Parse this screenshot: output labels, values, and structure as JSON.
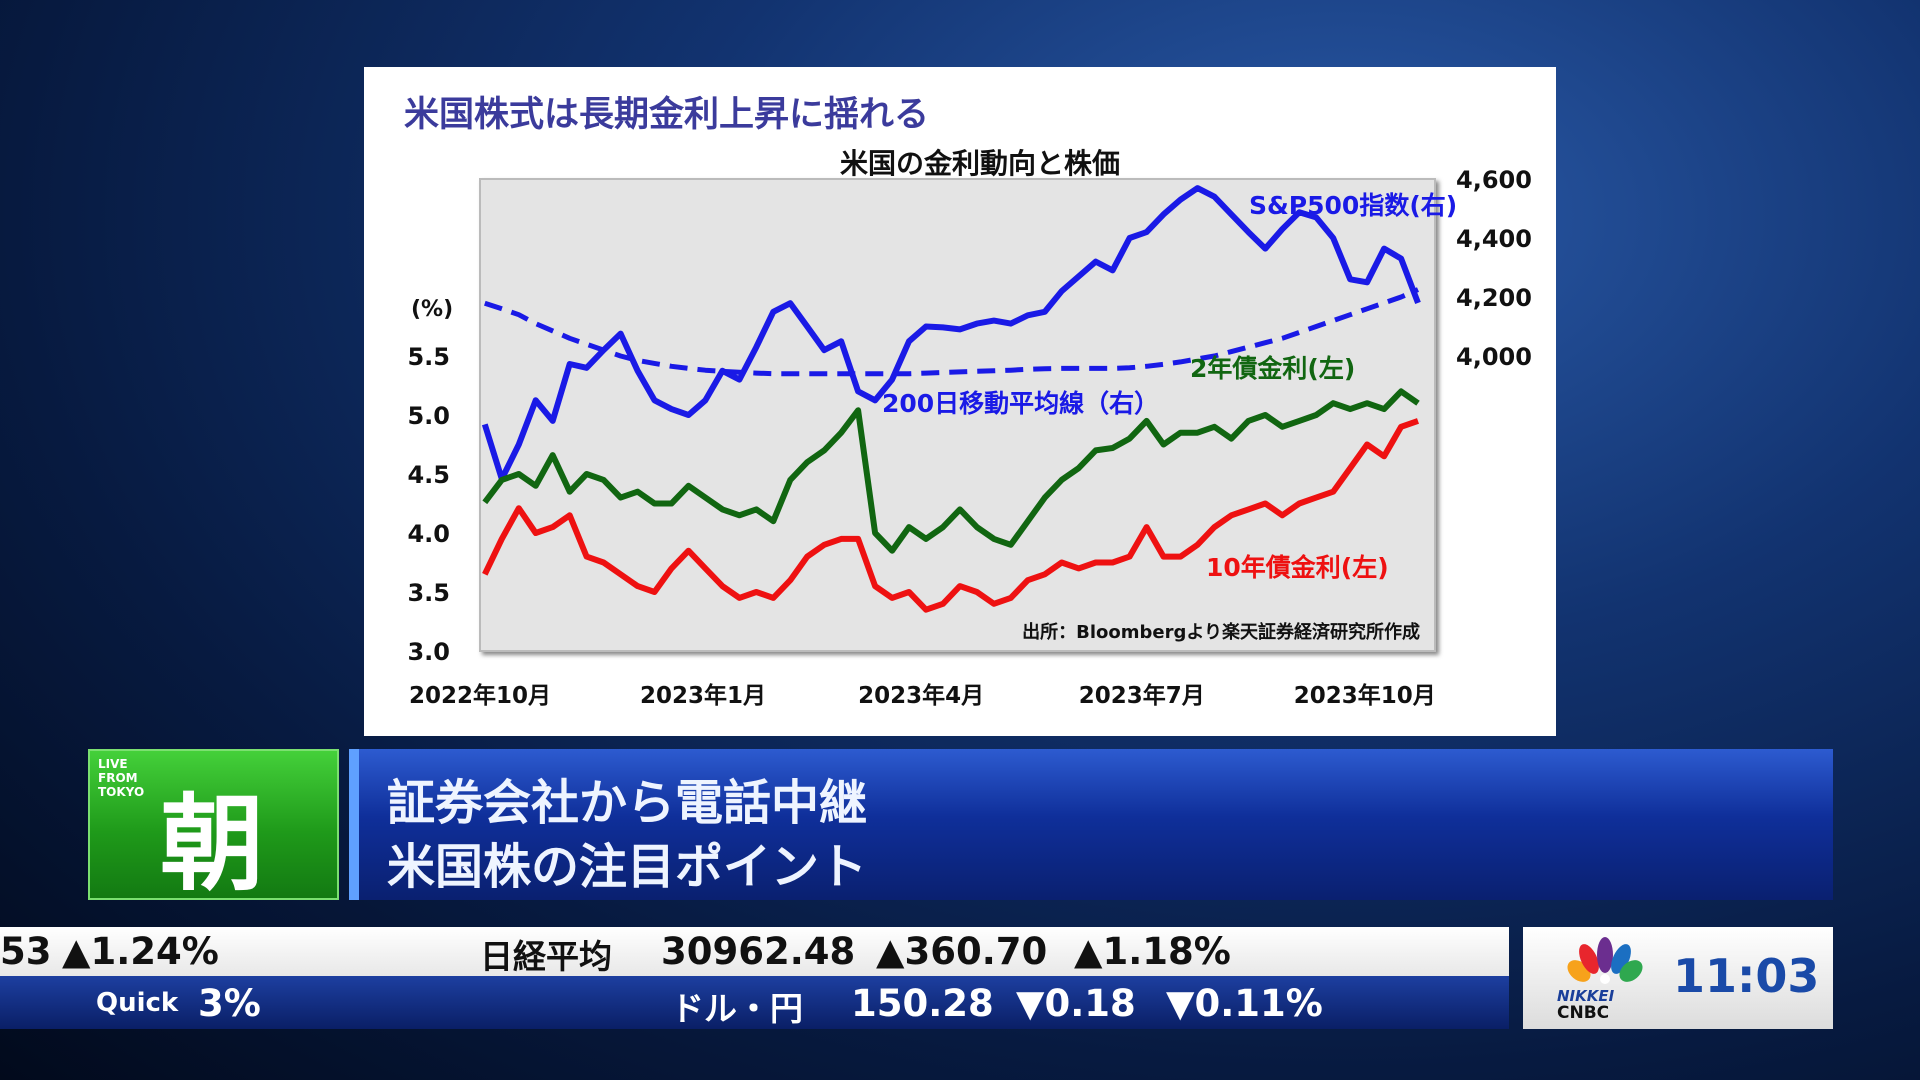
{
  "slide": {
    "title": "米国株式は長期金利上昇に揺れる"
  },
  "chart_data": {
    "type": "line",
    "title": "米国の金利動向と株価",
    "left_axis": {
      "label": "(%)",
      "ylim": [
        3.0,
        7.0
      ],
      "ticks": [
        "3.0",
        "3.5",
        "4.0",
        "4.5",
        "5.0",
        "5.5"
      ],
      "tick_values": [
        3.0,
        3.5,
        4.0,
        4.5,
        5.0,
        5.5
      ]
    },
    "right_axis": {
      "ylim": [
        3000,
        4600
      ],
      "ticks": [
        "4,000",
        "4,200",
        "4,400",
        "4,600"
      ],
      "tick_values": [
        4000,
        4200,
        4400,
        4600
      ]
    },
    "xlim": [
      "2022-10-01",
      "2023-10-30"
    ],
    "x_ticks": [
      {
        "label": "2022年10月",
        "date": "2022-10-01"
      },
      {
        "label": "2023年1月",
        "date": "2023-01-01"
      },
      {
        "label": "2023年4月",
        "date": "2023-04-01"
      },
      {
        "label": "2023年7月",
        "date": "2023-07-01"
      },
      {
        "label": "2023年10月",
        "date": "2023-10-01"
      }
    ],
    "grid": false,
    "source": "出所：Bloombergより楽天証券経済研究所作成",
    "x": [
      "2022-10-03",
      "2022-10-10",
      "2022-10-17",
      "2022-10-24",
      "2022-10-31",
      "2022-11-07",
      "2022-11-14",
      "2022-11-21",
      "2022-11-28",
      "2022-12-05",
      "2022-12-12",
      "2022-12-19",
      "2022-12-26",
      "2023-01-02",
      "2023-01-09",
      "2023-01-16",
      "2023-01-23",
      "2023-01-30",
      "2023-02-06",
      "2023-02-13",
      "2023-02-20",
      "2023-02-27",
      "2023-03-06",
      "2023-03-13",
      "2023-03-20",
      "2023-03-27",
      "2023-04-03",
      "2023-04-10",
      "2023-04-17",
      "2023-04-24",
      "2023-05-01",
      "2023-05-08",
      "2023-05-15",
      "2023-05-22",
      "2023-05-29",
      "2023-06-05",
      "2023-06-12",
      "2023-06-19",
      "2023-06-26",
      "2023-07-03",
      "2023-07-10",
      "2023-07-17",
      "2023-07-24",
      "2023-07-31",
      "2023-08-07",
      "2023-08-14",
      "2023-08-21",
      "2023-08-28",
      "2023-09-04",
      "2023-09-11",
      "2023-09-18",
      "2023-09-25",
      "2023-10-02",
      "2023-10-09",
      "2023-10-16",
      "2023-10-23"
    ],
    "series": [
      {
        "name": "S&P500指数(右)",
        "axis": "right",
        "color": "#1a1ae6",
        "dash": false,
        "values": [
          3768,
          3583,
          3700,
          3850,
          3780,
          3973,
          3960,
          4020,
          4076,
          3950,
          3850,
          3820,
          3800,
          3850,
          3950,
          3920,
          4030,
          4150,
          4179,
          4100,
          4020,
          4050,
          3880,
          3850,
          3920,
          4050,
          4100,
          4097,
          4090,
          4110,
          4120,
          4110,
          4138,
          4150,
          4220,
          4270,
          4320,
          4290,
          4400,
          4420,
          4480,
          4530,
          4569,
          4540,
          4480,
          4420,
          4364,
          4430,
          4487,
          4470,
          4400,
          4260,
          4250,
          4364,
          4330,
          4180
        ]
      },
      {
        "name": "200日移動平均線（右）",
        "axis": "right",
        "color": "#1a1ae6",
        "dash": true,
        "values": [
          4179,
          4160,
          4140,
          4110,
          4085,
          4060,
          4040,
          4020,
          4000,
          3985,
          3975,
          3965,
          3958,
          3952,
          3948,
          3945,
          3942,
          3940,
          3940,
          3940,
          3940,
          3940,
          3940,
          3940,
          3940,
          3940,
          3942,
          3944,
          3946,
          3948,
          3950,
          3952,
          3955,
          3957,
          3958,
          3958,
          3958,
          3958,
          3960,
          3965,
          3972,
          3980,
          3990,
          4000,
          4015,
          4030,
          4045,
          4060,
          4080,
          4100,
          4120,
          4140,
          4160,
          4180,
          4200,
          4225
        ]
      },
      {
        "name": "2年債金利(左)",
        "axis": "left",
        "color": "#116611",
        "dash": false,
        "values": [
          4.26,
          4.45,
          4.5,
          4.4,
          4.66,
          4.35,
          4.5,
          4.45,
          4.3,
          4.35,
          4.25,
          4.25,
          4.4,
          4.3,
          4.2,
          4.15,
          4.2,
          4.1,
          4.45,
          4.6,
          4.7,
          4.85,
          5.04,
          4.0,
          3.85,
          4.05,
          3.95,
          4.05,
          4.2,
          4.05,
          3.95,
          3.9,
          4.1,
          4.3,
          4.45,
          4.55,
          4.7,
          4.72,
          4.8,
          4.95,
          4.75,
          4.85,
          4.85,
          4.9,
          4.8,
          4.95,
          5.0,
          4.9,
          4.95,
          5.0,
          5.1,
          5.05,
          5.1,
          5.05,
          5.2,
          5.1
        ]
      },
      {
        "name": "10年債金利(左)",
        "axis": "left",
        "color": "#ee1111",
        "dash": false,
        "values": [
          3.65,
          3.95,
          4.21,
          4.0,
          4.05,
          4.15,
          3.8,
          3.75,
          3.65,
          3.55,
          3.5,
          3.7,
          3.85,
          3.7,
          3.55,
          3.45,
          3.5,
          3.45,
          3.6,
          3.8,
          3.9,
          3.95,
          3.95,
          3.55,
          3.45,
          3.5,
          3.35,
          3.4,
          3.55,
          3.5,
          3.4,
          3.45,
          3.6,
          3.65,
          3.75,
          3.7,
          3.75,
          3.75,
          3.8,
          4.05,
          3.8,
          3.8,
          3.9,
          4.05,
          4.15,
          4.2,
          4.25,
          4.15,
          4.25,
          4.3,
          4.35,
          4.55,
          4.75,
          4.65,
          4.9,
          4.95
        ]
      }
    ]
  },
  "badge": {
    "live": "LIVE FROM TOKYO",
    "program": "朝"
  },
  "banner": {
    "line1": "証券会社から電話中継",
    "line2": "米国株の注目ポイント"
  },
  "ticker": {
    "top": {
      "partial_value": "53",
      "partial_change_pct": "▲1.24%",
      "name": "日経平均",
      "value": "30962.48",
      "change": "▲360.70",
      "change_pct": "▲1.18%"
    },
    "bottom": {
      "partial_label": "Quick",
      "partial_value": "3%",
      "name": "ドル・円",
      "value": "150.28",
      "change": "▼0.18",
      "change_pct": "▼0.11%"
    }
  },
  "clock": {
    "time": "11:03",
    "logo_line1": "NIKKEI",
    "logo_line2": "CNBC"
  },
  "colors": {
    "up": "#e0102a",
    "down": "#2fb8ee",
    "program_green": "#1f9a1a",
    "banner_blue": "#0f2f9a"
  }
}
